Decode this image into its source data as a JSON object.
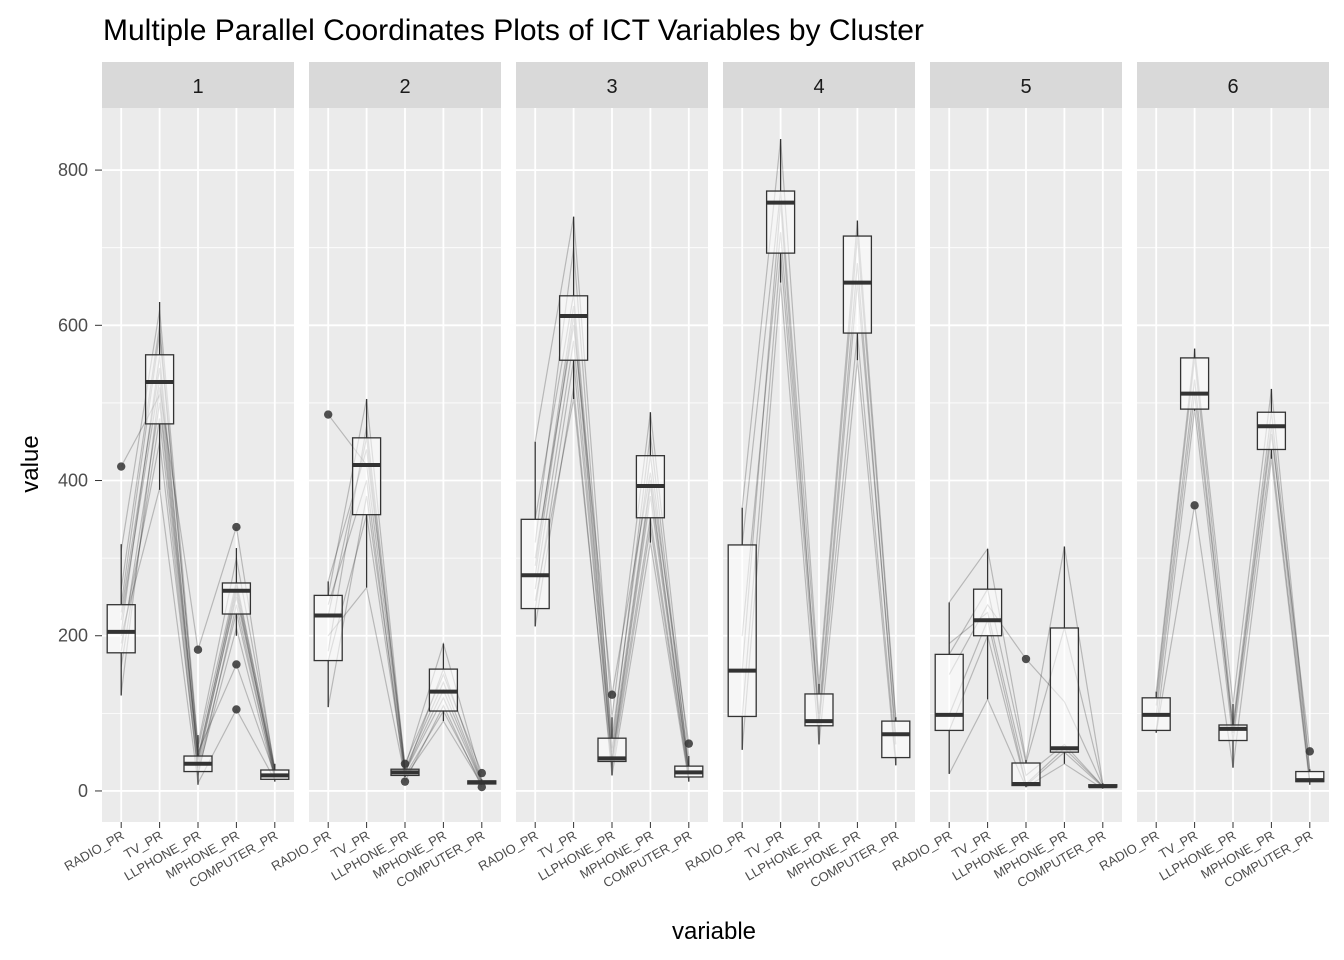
{
  "chart_data": {
    "type": "box",
    "title": "Multiple Parallel Coordinates Plots of ICT Variables by Cluster",
    "xlabel": "variable",
    "ylabel": "value",
    "categories": [
      "RADIO_PR",
      "TV_PR",
      "LLPHONE_PR",
      "MPHONE_PR",
      "COMPUTER_PR"
    ],
    "ylim": [
      -40,
      880
    ],
    "yticks": [
      0,
      200,
      400,
      600,
      800
    ],
    "grid": true,
    "colors": {
      "panel_bg": "#ebebeb",
      "grid": "#ffffff",
      "strip_bg": "#d9d9d9",
      "box_fill": "#ffffff",
      "line": "#333333",
      "pcp_line": "#000000"
    },
    "facets": [
      {
        "label": "1",
        "boxes": [
          {
            "min": 123,
            "q1": 178,
            "median": 205,
            "q3": 240,
            "max": 318,
            "outliers": [
              418
            ]
          },
          {
            "min": 388,
            "q1": 473,
            "median": 527,
            "q3": 562,
            "max": 630,
            "outliers": []
          },
          {
            "min": 8,
            "q1": 25,
            "median": 35,
            "q3": 45,
            "max": 72,
            "outliers": [
              182
            ]
          },
          {
            "min": 200,
            "q1": 228,
            "median": 258,
            "q3": 268,
            "max": 313,
            "outliers": [
              340,
              163,
              105
            ]
          },
          {
            "min": 12,
            "q1": 15,
            "median": 20,
            "q3": 27,
            "max": 35,
            "outliers": []
          }
        ],
        "lines": [
          [
            418,
            510,
            45,
            260,
            20
          ],
          [
            205,
            560,
            40,
            250,
            22
          ],
          [
            180,
            500,
            30,
            230,
            18
          ],
          [
            240,
            590,
            55,
            270,
            28
          ],
          [
            310,
            620,
            60,
            300,
            30
          ],
          [
            190,
            450,
            25,
            210,
            15
          ],
          [
            220,
            530,
            35,
            255,
            24
          ],
          [
            160,
            480,
            20,
            240,
            17
          ],
          [
            125,
            520,
            182,
            340,
            25
          ],
          [
            260,
            600,
            50,
            163,
            21
          ],
          [
            200,
            390,
            10,
            105,
            14
          ],
          [
            230,
            545,
            42,
            265,
            26
          ]
        ]
      },
      {
        "label": "2",
        "boxes": [
          {
            "min": 108,
            "q1": 168,
            "median": 226,
            "q3": 252,
            "max": 270,
            "outliers": [
              485
            ]
          },
          {
            "min": 262,
            "q1": 356,
            "median": 420,
            "q3": 455,
            "max": 505,
            "outliers": []
          },
          {
            "min": 18,
            "q1": 20,
            "median": 24,
            "q3": 28,
            "max": 30,
            "outliers": [
              35,
              12
            ]
          },
          {
            "min": 90,
            "q1": 103,
            "median": 128,
            "q3": 157,
            "max": 190,
            "outliers": []
          },
          {
            "min": 8,
            "q1": 9,
            "median": 11,
            "q3": 13,
            "max": 15,
            "outliers": [
              23,
              5
            ]
          }
        ],
        "lines": [
          [
            485,
            420,
            25,
            130,
            11
          ],
          [
            226,
            455,
            22,
            157,
            13
          ],
          [
            168,
            356,
            20,
            103,
            9
          ],
          [
            252,
            505,
            30,
            190,
            15
          ],
          [
            108,
            380,
            24,
            120,
            10
          ],
          [
            270,
            440,
            35,
            150,
            23
          ],
          [
            200,
            262,
            18,
            90,
            8
          ],
          [
            240,
            400,
            12,
            110,
            5
          ],
          [
            180,
            470,
            28,
            140,
            12
          ]
        ]
      },
      {
        "label": "3",
        "boxes": [
          {
            "min": 212,
            "q1": 235,
            "median": 278,
            "q3": 350,
            "max": 450,
            "outliers": []
          },
          {
            "min": 505,
            "q1": 555,
            "median": 612,
            "q3": 638,
            "max": 740,
            "outliers": []
          },
          {
            "min": 20,
            "q1": 38,
            "median": 42,
            "q3": 68,
            "max": 95,
            "outliers": [
              124
            ]
          },
          {
            "min": 320,
            "q1": 352,
            "median": 393,
            "q3": 432,
            "max": 488,
            "outliers": []
          },
          {
            "min": 12,
            "q1": 18,
            "median": 24,
            "q3": 32,
            "max": 45,
            "outliers": [
              61
            ]
          }
        ],
        "lines": [
          [
            278,
            612,
            42,
            393,
            24
          ],
          [
            350,
            640,
            68,
            432,
            32
          ],
          [
            235,
            555,
            38,
            352,
            18
          ],
          [
            450,
            740,
            95,
            488,
            45
          ],
          [
            212,
            520,
            20,
            320,
            12
          ],
          [
            300,
            600,
            124,
            410,
            61
          ],
          [
            260,
            580,
            40,
            380,
            22
          ],
          [
            320,
            700,
            55,
            460,
            28
          ],
          [
            245,
            505,
            30,
            340,
            15
          ],
          [
            290,
            625,
            50,
            400,
            26
          ]
        ]
      },
      {
        "label": "4",
        "boxes": [
          {
            "min": 53,
            "q1": 96,
            "median": 155,
            "q3": 317,
            "max": 365,
            "outliers": []
          },
          {
            "min": 655,
            "q1": 693,
            "median": 758,
            "q3": 773,
            "max": 840,
            "outliers": []
          },
          {
            "min": 60,
            "q1": 84,
            "median": 90,
            "q3": 125,
            "max": 138,
            "outliers": []
          },
          {
            "min": 555,
            "q1": 590,
            "median": 655,
            "q3": 715,
            "max": 735,
            "outliers": []
          },
          {
            "min": 33,
            "q1": 43,
            "median": 73,
            "q3": 90,
            "max": 95,
            "outliers": []
          }
        ],
        "lines": [
          [
            155,
            758,
            90,
            655,
            73
          ],
          [
            317,
            773,
            125,
            715,
            90
          ],
          [
            96,
            693,
            84,
            590,
            43
          ],
          [
            365,
            840,
            138,
            735,
            95
          ],
          [
            53,
            655,
            60,
            555,
            33
          ],
          [
            200,
            720,
            100,
            680,
            60
          ]
        ]
      },
      {
        "label": "5",
        "boxes": [
          {
            "min": 22,
            "q1": 78,
            "median": 98,
            "q3": 176,
            "max": 243,
            "outliers": []
          },
          {
            "min": 118,
            "q1": 200,
            "median": 220,
            "q3": 260,
            "max": 312,
            "outliers": []
          },
          {
            "min": 5,
            "q1": 7,
            "median": 9,
            "q3": 36,
            "max": 40,
            "outliers": [
              170
            ]
          },
          {
            "min": 35,
            "q1": 50,
            "median": 55,
            "q3": 210,
            "max": 315,
            "outliers": []
          },
          {
            "min": 3,
            "q1": 5,
            "median": 6,
            "q3": 8,
            "max": 10,
            "outliers": []
          }
        ],
        "lines": [
          [
            98,
            220,
            9,
            55,
            6
          ],
          [
            176,
            260,
            36,
            210,
            8
          ],
          [
            78,
            200,
            7,
            50,
            5
          ],
          [
            243,
            312,
            40,
            315,
            10
          ],
          [
            22,
            118,
            5,
            35,
            3
          ],
          [
            150,
            240,
            170,
            115,
            7
          ],
          [
            190,
            230,
            20,
            60,
            6
          ]
        ]
      },
      {
        "label": "6",
        "boxes": [
          {
            "min": 75,
            "q1": 78,
            "median": 98,
            "q3": 120,
            "max": 128,
            "outliers": []
          },
          {
            "min": 490,
            "q1": 492,
            "median": 512,
            "q3": 558,
            "max": 570,
            "outliers": [
              368
            ]
          },
          {
            "min": 30,
            "q1": 65,
            "median": 80,
            "q3": 85,
            "max": 112,
            "outliers": []
          },
          {
            "min": 428,
            "q1": 440,
            "median": 470,
            "q3": 488,
            "max": 518,
            "outliers": []
          },
          {
            "min": 8,
            "q1": 12,
            "median": 14,
            "q3": 25,
            "max": 28,
            "outliers": [
              51
            ]
          }
        ],
        "lines": [
          [
            98,
            512,
            80,
            470,
            14
          ],
          [
            120,
            558,
            85,
            488,
            25
          ],
          [
            78,
            492,
            65,
            440,
            12
          ],
          [
            128,
            570,
            112,
            518,
            28
          ],
          [
            75,
            368,
            30,
            428,
            8
          ],
          [
            110,
            530,
            75,
            460,
            51
          ]
        ]
      }
    ]
  }
}
